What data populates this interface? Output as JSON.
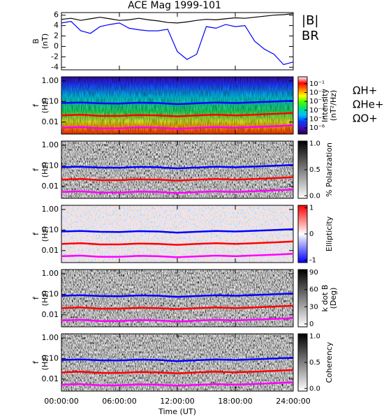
{
  "chart_data": [
    {
      "type": "line",
      "title": "ACE Mag 1999-101",
      "ylabel": [
        "B",
        "(nT)"
      ],
      "x": [
        0,
        1,
        2,
        3,
        4,
        5,
        6,
        7,
        8,
        9,
        10,
        11,
        12,
        13,
        14,
        15,
        16,
        17,
        18,
        19,
        20,
        21,
        22,
        23,
        24
      ],
      "xlim": [
        0,
        24
      ],
      "xticks": [
        0,
        6,
        12,
        18,
        24
      ],
      "ylim": [
        -4.5,
        6.5
      ],
      "yticks": [
        -4,
        -2,
        0,
        2,
        4,
        6
      ],
      "legend": true,
      "series": [
        {
          "name": "|B|",
          "color": "#000000",
          "values": [
            5.2,
            5.4,
            5.0,
            5.3,
            5.6,
            5.3,
            5.0,
            5.1,
            5.4,
            5.1,
            4.9,
            4.6,
            4.5,
            4.7,
            5.0,
            5.2,
            5.1,
            5.3,
            5.5,
            5.4,
            5.6,
            5.8,
            6.0,
            6.1,
            6.3
          ]
        },
        {
          "name": "BR",
          "color": "#0000ff",
          "values": [
            4.5,
            4.8,
            3.0,
            2.5,
            3.8,
            4.2,
            4.5,
            3.5,
            3.2,
            3.0,
            3.0,
            3.3,
            -1.0,
            -2.5,
            -1.5,
            3.8,
            3.5,
            4.2,
            3.8,
            4.0,
            1.0,
            -0.5,
            -1.5,
            -3.5,
            -3.0
          ]
        }
      ]
    },
    {
      "type": "spectrogram",
      "ylabel": [
        "f",
        "(Hz)"
      ],
      "log_y": true,
      "x": [
        0,
        2,
        4,
        6,
        8,
        10,
        12,
        14,
        16,
        18,
        20,
        22,
        24
      ],
      "xlim": [
        0,
        24
      ],
      "xticks": [
        0,
        6,
        12,
        18,
        24
      ],
      "ylim": [
        0.0026,
        1.6
      ],
      "yticks": [
        {
          "value": 0.01,
          "label": "0.01"
        },
        {
          "value": 0.1,
          "label": "0.10"
        },
        {
          "value": 1,
          "label": "1.00"
        }
      ],
      "legend": true,
      "series": [
        {
          "name": "ΩH+",
          "color": "#0000ff",
          "values": [
            0.085,
            0.09,
            0.082,
            0.08,
            0.088,
            0.085,
            0.075,
            0.082,
            0.09,
            0.085,
            0.092,
            0.1,
            0.11
          ]
        },
        {
          "name": "ΩHe+",
          "color": "#ff0000",
          "values": [
            0.021,
            0.023,
            0.02,
            0.02,
            0.022,
            0.021,
            0.019,
            0.021,
            0.023,
            0.021,
            0.023,
            0.025,
            0.028
          ]
        },
        {
          "name": "ΩO+",
          "color": "#ff00ff",
          "values": [
            0.0053,
            0.0057,
            0.005,
            0.005,
            0.0055,
            0.0053,
            0.0047,
            0.0052,
            0.0057,
            0.0053,
            0.0058,
            0.0063,
            0.007
          ]
        }
      ],
      "colorbar": {
        "label": [
          "Intensity",
          "(nT²/Hz)"
        ],
        "log": true,
        "lim": [
          2e-07,
          0.6
        ],
        "colors": [
          "#200040",
          "#4010c0",
          "#0040ff",
          "#00c0ff",
          "#00e080",
          "#40ff00",
          "#ffff00",
          "#ff8000",
          "#ff0000",
          "#ffffff"
        ],
        "ticks": [
          {
            "value": 0.1,
            "label": "10⁻¹"
          },
          {
            "value": 0.01,
            "label": "10⁻²"
          },
          {
            "value": 0.001,
            "label": "10⁻³"
          },
          {
            "value": 0.0001,
            "label": "10⁻⁴"
          },
          {
            "value": 1e-05,
            "label": "10⁻⁵"
          },
          {
            "value": 1e-06,
            "label": "10⁻⁶"
          }
        ]
      }
    },
    {
      "type": "spectrogram",
      "ylabel": [
        "f",
        "(Hz)"
      ],
      "log_y": true,
      "x": [
        0,
        2,
        4,
        6,
        8,
        10,
        12,
        14,
        16,
        18,
        20,
        22,
        24
      ],
      "xlim": [
        0,
        24
      ],
      "xticks": [
        0,
        6,
        12,
        18,
        24
      ],
      "ylim": [
        0.0026,
        1.6
      ],
      "yticks": [
        {
          "value": 0.01,
          "label": "0.01"
        },
        {
          "value": 0.1,
          "label": "0.10"
        },
        {
          "value": 1,
          "label": "1.00"
        }
      ],
      "series": [
        {
          "color": "#0000ff",
          "values": [
            0.085,
            0.09,
            0.082,
            0.08,
            0.088,
            0.085,
            0.075,
            0.082,
            0.09,
            0.085,
            0.092,
            0.1,
            0.11
          ]
        },
        {
          "color": "#ff0000",
          "values": [
            0.021,
            0.023,
            0.02,
            0.02,
            0.022,
            0.021,
            0.019,
            0.021,
            0.023,
            0.021,
            0.023,
            0.025,
            0.028
          ]
        },
        {
          "color": "#ff00ff",
          "values": [
            0.0053,
            0.0057,
            0.005,
            0.005,
            0.0055,
            0.0053,
            0.0047,
            0.0052,
            0.0057,
            0.0053,
            0.0058,
            0.0063,
            0.007
          ]
        }
      ],
      "colorbar": {
        "label": [
          "% Polarization"
        ],
        "lim": [
          -0.05,
          1.05
        ],
        "colors": [
          "#ffffff",
          "#000000"
        ],
        "ticks": [
          {
            "value": 0,
            "label": "0.0"
          },
          {
            "value": 0.5,
            "label": "0.5"
          },
          {
            "value": 1,
            "label": "1.0"
          }
        ]
      }
    },
    {
      "type": "spectrogram",
      "ylabel": [
        "f",
        "(Hz)"
      ],
      "log_y": true,
      "x": [
        0,
        2,
        4,
        6,
        8,
        10,
        12,
        14,
        16,
        18,
        20,
        22,
        24
      ],
      "xlim": [
        0,
        24
      ],
      "xticks": [
        0,
        6,
        12,
        18,
        24
      ],
      "ylim": [
        0.0026,
        1.6
      ],
      "yticks": [
        {
          "value": 0.01,
          "label": "0.01"
        },
        {
          "value": 0.1,
          "label": "0.10"
        },
        {
          "value": 1,
          "label": "1.00"
        }
      ],
      "series": [
        {
          "color": "#0000ff",
          "values": [
            0.085,
            0.09,
            0.082,
            0.08,
            0.088,
            0.085,
            0.075,
            0.082,
            0.09,
            0.085,
            0.092,
            0.1,
            0.11
          ]
        },
        {
          "color": "#ff0000",
          "values": [
            0.021,
            0.023,
            0.02,
            0.02,
            0.022,
            0.021,
            0.019,
            0.021,
            0.023,
            0.021,
            0.023,
            0.025,
            0.028
          ]
        },
        {
          "color": "#ff00ff",
          "values": [
            0.0053,
            0.0057,
            0.005,
            0.005,
            0.0055,
            0.0053,
            0.0047,
            0.0052,
            0.0057,
            0.0053,
            0.0058,
            0.0063,
            0.007
          ]
        }
      ],
      "colorbar": {
        "label": [
          "Ellipticity"
        ],
        "lim": [
          -1.1,
          1.1
        ],
        "colors": [
          "#0000ff",
          "#ffffff",
          "#ff0000"
        ],
        "ticks": [
          -1,
          0,
          1
        ]
      }
    },
    {
      "type": "spectrogram",
      "ylabel": [
        "f",
        "(Hz)"
      ],
      "log_y": true,
      "x": [
        0,
        2,
        4,
        6,
        8,
        10,
        12,
        14,
        16,
        18,
        20,
        22,
        24
      ],
      "xlim": [
        0,
        24
      ],
      "xticks": [
        0,
        6,
        12,
        18,
        24
      ],
      "ylim": [
        0.0026,
        1.6
      ],
      "yticks": [
        {
          "value": 0.01,
          "label": "0.01"
        },
        {
          "value": 0.1,
          "label": "0.10"
        },
        {
          "value": 1,
          "label": "1.00"
        }
      ],
      "series": [
        {
          "color": "#0000ff",
          "values": [
            0.085,
            0.09,
            0.082,
            0.08,
            0.088,
            0.085,
            0.075,
            0.082,
            0.09,
            0.085,
            0.092,
            0.1,
            0.11
          ]
        },
        {
          "color": "#ff0000",
          "values": [
            0.021,
            0.023,
            0.02,
            0.02,
            0.022,
            0.021,
            0.019,
            0.021,
            0.023,
            0.021,
            0.023,
            0.025,
            0.028
          ]
        },
        {
          "color": "#ff00ff",
          "values": [
            0.0053,
            0.0057,
            0.005,
            0.005,
            0.0055,
            0.0053,
            0.0047,
            0.0052,
            0.0057,
            0.0053,
            0.0058,
            0.0063,
            0.007
          ]
        }
      ],
      "colorbar": {
        "label": [
          "k dot B",
          "(Deg)"
        ],
        "lim": [
          -5,
          95
        ],
        "colors": [
          "#ffffff",
          "#000000"
        ],
        "ticks": [
          0,
          30,
          60,
          90
        ]
      }
    },
    {
      "type": "spectrogram",
      "ylabel": [
        "f",
        "(Hz)"
      ],
      "log_y": true,
      "x": [
        0,
        2,
        4,
        6,
        8,
        10,
        12,
        14,
        16,
        18,
        20,
        22,
        24
      ],
      "xlim": [
        0,
        24
      ],
      "xlabel": "Time (UT)",
      "xticks": [
        {
          "value": 0,
          "label": "00:00:00"
        },
        {
          "value": 6,
          "label": "06:00:00"
        },
        {
          "value": 12,
          "label": "12:00:00"
        },
        {
          "value": 18,
          "label": "18:00:00"
        },
        {
          "value": 24,
          "label": "24:00:00"
        }
      ],
      "ylim": [
        0.0026,
        1.6
      ],
      "yticks": [
        {
          "value": 0.01,
          "label": "0.01"
        },
        {
          "value": 0.1,
          "label": "0.10"
        },
        {
          "value": 1,
          "label": "1.00"
        }
      ],
      "series": [
        {
          "color": "#0000ff",
          "values": [
            0.085,
            0.09,
            0.082,
            0.08,
            0.088,
            0.085,
            0.075,
            0.082,
            0.09,
            0.085,
            0.092,
            0.1,
            0.11
          ]
        },
        {
          "color": "#ff0000",
          "values": [
            0.021,
            0.023,
            0.02,
            0.02,
            0.022,
            0.021,
            0.019,
            0.021,
            0.023,
            0.021,
            0.023,
            0.025,
            0.028
          ]
        },
        {
          "color": "#ff00ff",
          "values": [
            0.0053,
            0.0057,
            0.005,
            0.005,
            0.0055,
            0.0053,
            0.0047,
            0.0052,
            0.0057,
            0.0053,
            0.0058,
            0.0063,
            0.007
          ]
        }
      ],
      "colorbar": {
        "label": [
          "Coherency"
        ],
        "lim": [
          -0.05,
          1.05
        ],
        "colors": [
          "#ffffff",
          "#000000"
        ],
        "ticks": [
          {
            "value": 0,
            "label": "0.0"
          },
          {
            "value": 0.5,
            "label": "0.5"
          },
          {
            "value": 1,
            "label": "1.0"
          }
        ]
      }
    }
  ]
}
